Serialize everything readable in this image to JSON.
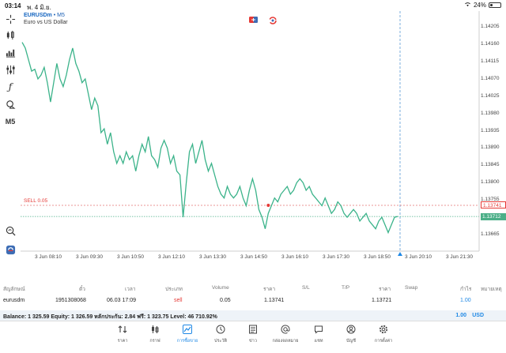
{
  "status": {
    "time": "03:14",
    "date": "พ. 4 มิ.ย.",
    "battery": "24%",
    "battery_level": 0.24
  },
  "toolbar": {
    "icons": [
      "crosshair-icon",
      "candlestick-icon",
      "bar-chart-icon",
      "indicators-icon",
      "function-icon",
      "objects-icon"
    ],
    "timeframe": "M5"
  },
  "chart": {
    "symbol": "EURUSDm",
    "timeframe_suffix": " • M5",
    "description": "Euro vs US Dollar",
    "y_ticks": [
      "1.14205",
      "1.14160",
      "1.14115",
      "1.14070",
      "1.14025",
      "1.13980",
      "1.13935",
      "1.13890",
      "1.13845",
      "1.13800",
      "1.13755",
      "1.13665"
    ],
    "x_ticks": [
      "3 Jun 08:10",
      "3 Jun 09:30",
      "3 Jun 10:50",
      "3 Jun 12:10",
      "3 Jun 13:30",
      "3 Jun 14:50",
      "3 Jun 16:10",
      "3 Jun 17:30",
      "3 Jun 18:50",
      "3 Jun 20:10",
      "3 Jun 21:30"
    ],
    "sell_label": "SELL 0.05",
    "sell_price": "1.13741",
    "bid_price": "1.13712",
    "line_color": "#3bb38a",
    "sell_color": "#e53935"
  },
  "chart_data": {
    "type": "line",
    "title": "",
    "xlabel": "",
    "ylabel": "",
    "ylim": [
      1.1363,
      1.1423
    ],
    "x": [
      0,
      1,
      2,
      3,
      4,
      5,
      6,
      7,
      8,
      9,
      10,
      11,
      12,
      13,
      14,
      15,
      16,
      17,
      18,
      19,
      20,
      21,
      22,
      23,
      24,
      25,
      26,
      27,
      28,
      29,
      30,
      31,
      32,
      33,
      34,
      35,
      36,
      37,
      38,
      39,
      40,
      41,
      42,
      43,
      44,
      45,
      46,
      47,
      48,
      49,
      50,
      51,
      52,
      53,
      54,
      55,
      56,
      57,
      58,
      59,
      60,
      61,
      62,
      63,
      64,
      65,
      66,
      67,
      68,
      69,
      70,
      71,
      72,
      73,
      74,
      75,
      76,
      77,
      78,
      79,
      80,
      81,
      82,
      83,
      84,
      85,
      86,
      87,
      88,
      89,
      90,
      91,
      92,
      93,
      94,
      95,
      96,
      97,
      98,
      99,
      100,
      101,
      102,
      103,
      104,
      105,
      106,
      107,
      108,
      109,
      110,
      111,
      112,
      113,
      114,
      115,
      116,
      117,
      118,
      119
    ],
    "series": [
      {
        "values": [
          1.14165,
          1.1415,
          1.1412,
          1.1409,
          1.14095,
          1.1407,
          1.1408,
          1.141,
          1.1406,
          1.1401,
          1.1406,
          1.1411,
          1.1407,
          1.1405,
          1.1408,
          1.1412,
          1.1415,
          1.1411,
          1.1409,
          1.1406,
          1.1407,
          1.1403,
          1.1399,
          1.1402,
          1.14,
          1.1393,
          1.1394,
          1.139,
          1.1393,
          1.1388,
          1.1385,
          1.1387,
          1.1385,
          1.1388,
          1.1386,
          1.1387,
          1.1383,
          1.1387,
          1.139,
          1.1388,
          1.1392,
          1.1387,
          1.1386,
          1.1384,
          1.1389,
          1.1391,
          1.1389,
          1.1385,
          1.1387,
          1.1383,
          1.1382,
          1.1371,
          1.138,
          1.1388,
          1.139,
          1.1385,
          1.1388,
          1.1391,
          1.1386,
          1.1383,
          1.1385,
          1.1382,
          1.1379,
          1.1377,
          1.1376,
          1.1379,
          1.1377,
          1.1376,
          1.1377,
          1.1379,
          1.1376,
          1.1374,
          1.1378,
          1.1381,
          1.1378,
          1.1373,
          1.1371,
          1.1368,
          1.1372,
          1.1374,
          1.1376,
          1.1375,
          1.1377,
          1.1378,
          1.1379,
          1.1377,
          1.1378,
          1.138,
          1.1381,
          1.138,
          1.1378,
          1.1379,
          1.1377,
          1.1376,
          1.1375,
          1.1374,
          1.1376,
          1.1374,
          1.1372,
          1.1373,
          1.1375,
          1.1374,
          1.1372,
          1.1371,
          1.1372,
          1.1373,
          1.1372,
          1.137,
          1.1371,
          1.1372,
          1.137,
          1.1369,
          1.1368,
          1.137,
          1.1371,
          1.1369,
          1.1367,
          1.1369,
          1.1371,
          1.13712
        ]
      }
    ],
    "marker": {
      "label": "SELL 0.05",
      "price": 1.13741,
      "index": 78
    }
  },
  "table": {
    "headers": [
      "สัญลักษณ์",
      "ตั๋ว",
      "เวลา",
      "ประเภท",
      "Volume",
      "ราคา",
      "S/L",
      "T/P",
      "ราคา",
      "Swap",
      "กำไร",
      "หมายเหตุ"
    ],
    "row": {
      "symbol": "eurusdm",
      "ticket": "1951308068",
      "time": "06.03 17:09",
      "type": "sell",
      "volume": "0.05",
      "open_price": "1.13741",
      "sl": "",
      "tp": "",
      "price": "1.13721",
      "swap": "",
      "profit": "1.00",
      "note": ""
    }
  },
  "balance": {
    "text": "Balance: 1 325.59 Equity: 1 326.59 หลักประกัน: 2.84 ฟรี: 1 323.75 Level: 46 710.92%",
    "profit": "1.00",
    "currency": "USD"
  },
  "nav": {
    "items": [
      {
        "label": "ราคา",
        "icon": "quotes-icon"
      },
      {
        "label": "กราฟ",
        "icon": "chart-icon"
      },
      {
        "label": "การซื้อขาย",
        "icon": "trade-icon"
      },
      {
        "label": "ประวัติ",
        "icon": "history-icon"
      },
      {
        "label": "ข่าว",
        "icon": "news-icon"
      },
      {
        "label": "กล่องจดหมาย",
        "icon": "mailbox-icon"
      },
      {
        "label": "แชท",
        "icon": "chat-icon"
      },
      {
        "label": "บัญชี",
        "icon": "account-icon"
      },
      {
        "label": "การตั้งค่า",
        "icon": "settings-icon"
      }
    ],
    "active": 2
  }
}
